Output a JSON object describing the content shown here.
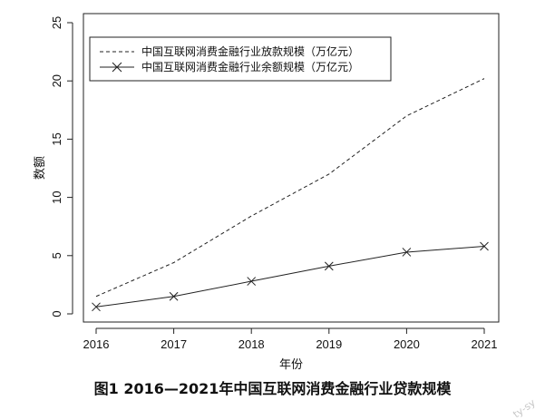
{
  "chart_data": {
    "type": "line",
    "x": [
      2016,
      2017,
      2018,
      2019,
      2020,
      2021
    ],
    "xlabel": "年份",
    "ylabel": "数额",
    "xlim": [
      2016,
      2021
    ],
    "ylim": [
      0,
      25
    ],
    "yticks": [
      0,
      5,
      10,
      15,
      20,
      25
    ],
    "xticks": [
      2016,
      2017,
      2018,
      2019,
      2020,
      2021
    ],
    "grid": false,
    "legend_position": "top-left",
    "series": [
      {
        "name": "中国互联网消费金融行业放款规模（万亿元）",
        "style": "dashed",
        "marker": "none",
        "values": [
          1.5,
          4.4,
          8.4,
          12.0,
          17.0,
          20.2
        ]
      },
      {
        "name": "中国互联网消费金融行业余额规模（万亿元）",
        "style": "solid",
        "marker": "x",
        "values": [
          0.6,
          1.5,
          2.8,
          4.1,
          5.3,
          5.8
        ]
      }
    ]
  },
  "caption": "图1  2016—2021年中国互联网消费金融行业贷款规模",
  "watermark": "ty-sy"
}
